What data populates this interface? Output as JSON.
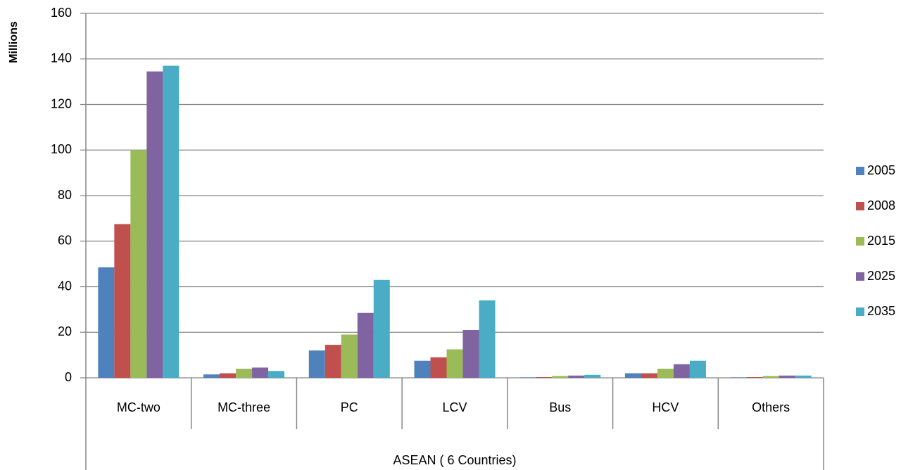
{
  "chart_data": {
    "type": "bar",
    "y_label": "Millions",
    "x_group_label": "ASEAN ( 6 Countries)",
    "categories": [
      "MC-two",
      "MC-three",
      "PC",
      "LCV",
      "Bus",
      "HCV",
      "Others"
    ],
    "series": [
      {
        "name": "2005",
        "color": "#4f81bd",
        "values": [
          48.5,
          1.5,
          12,
          7.5,
          0.2,
          2,
          0.2
        ]
      },
      {
        "name": "2008",
        "color": "#c0504d",
        "values": [
          67.5,
          2,
          14.5,
          9,
          0.3,
          2,
          0.3
        ]
      },
      {
        "name": "2015",
        "color": "#9bbb59",
        "values": [
          100,
          4,
          19,
          12.5,
          0.8,
          4,
          0.8
        ]
      },
      {
        "name": "2025",
        "color": "#8064a2",
        "values": [
          134.5,
          4.5,
          28.5,
          21,
          1,
          6,
          1
        ]
      },
      {
        "name": "2035",
        "color": "#4bacc6",
        "values": [
          137,
          3,
          43,
          34,
          1.3,
          7.5,
          1
        ]
      }
    ],
    "ylim": [
      0,
      160
    ],
    "yticks": [
      0,
      20,
      40,
      60,
      80,
      100,
      120,
      140,
      160
    ],
    "grid": true,
    "legend": "right"
  }
}
